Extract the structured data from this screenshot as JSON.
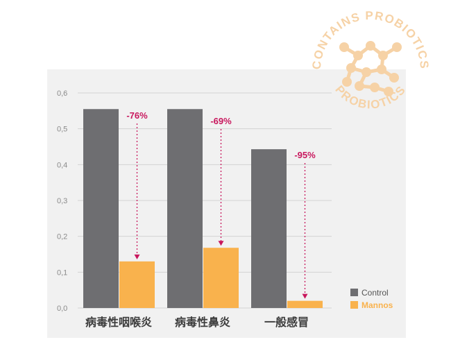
{
  "chart_data": {
    "type": "bar",
    "categories": [
      "病毒性咽喉炎",
      "病毒性鼻炎",
      "一般感冒"
    ],
    "series": [
      {
        "name": "Control",
        "values": [
          0.555,
          0.555,
          0.443
        ]
      },
      {
        "name": "Mannos",
        "values": [
          0.13,
          0.168,
          0.02
        ]
      }
    ],
    "annotations": [
      "-76%",
      "-69%",
      "-95%"
    ],
    "y_ticks": [
      "0,0",
      "0,1",
      "0,2",
      "0,3",
      "0,4",
      "0,5",
      "0,6"
    ],
    "ylim": [
      0,
      0.6
    ],
    "grid": true,
    "legend_position": "bottom-right",
    "colors": {
      "Control": "#6e6e71",
      "Mannos": "#f9b24d",
      "annotation": "#c8175d",
      "grid": "#d2d2d2",
      "panel": "#f1f1f1"
    }
  },
  "stamp": {
    "text_top": "CONTAINS PROBIOTICS",
    "text_bottom": "PROBIOTICS",
    "color": "#f6d2a6",
    "icon": "molecule-icon"
  }
}
